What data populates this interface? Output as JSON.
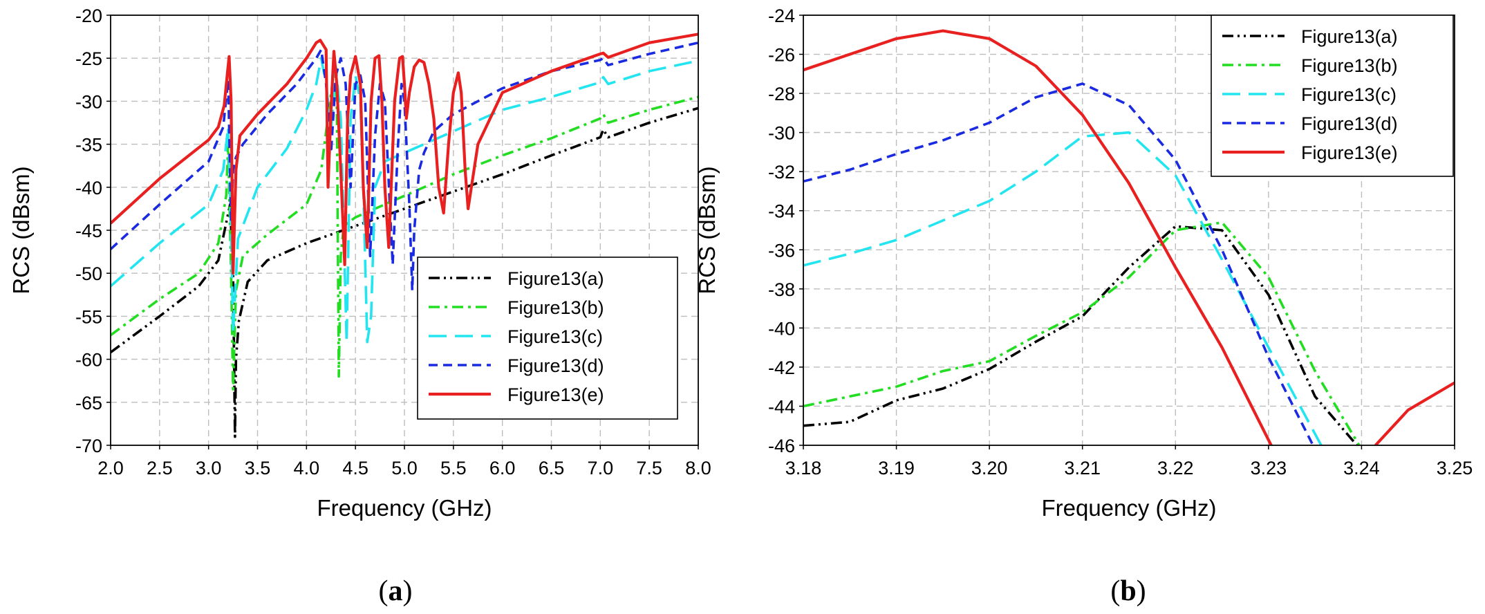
{
  "colors": {
    "a": "#000000",
    "b": "#22dd22",
    "c": "#22e5f0",
    "d": "#1a2ae0",
    "e": "#e82020"
  },
  "legend": [
    "Figure13(a)",
    "Figure13(b)",
    "Figure13(c)",
    "Figure13(d)",
    "Figure13(e)"
  ],
  "captions": {
    "a_letter": "a",
    "b_letter": "b"
  },
  "chart_data": [
    {
      "type": "line",
      "panel": "a",
      "xlabel": "Frequency (GHz)",
      "ylabel": "RCS (dBsm)",
      "xlim": [
        2.0,
        8.0
      ],
      "ylim": [
        -70,
        -20
      ],
      "xticks": [
        "2.0",
        "2.5",
        "3.0",
        "3.5",
        "4.0",
        "4.5",
        "5.0",
        "5.5",
        "6.0",
        "6.5",
        "7.0",
        "7.5",
        "8.0"
      ],
      "yticks": [
        "-20",
        "-25",
        "-30",
        "-35",
        "-40",
        "-45",
        "-50",
        "-55",
        "-60",
        "-65",
        "-70"
      ],
      "grid": true,
      "legend_position": "lower-right",
      "series": [
        {
          "name": "Figure13(a)",
          "key": "a",
          "x": [
            2.0,
            2.5,
            2.9,
            3.1,
            3.22,
            3.25,
            3.27,
            3.28,
            3.31,
            3.4,
            3.6,
            4.0,
            4.5,
            5.0,
            5.5,
            6.0,
            6.5,
            7.0,
            7.03,
            7.08,
            7.5,
            8.0
          ],
          "y": [
            -59.2,
            -55,
            -51.5,
            -48.5,
            -42,
            -50,
            -69,
            -60,
            -55.5,
            -51,
            -48.5,
            -46.5,
            -44.5,
            -42.5,
            -40.5,
            -38.5,
            -36.3,
            -34.2,
            -33.3,
            -34.2,
            -32.5,
            -30.8
          ]
        },
        {
          "name": "Figure13(b)",
          "key": "b",
          "x": [
            2.0,
            2.5,
            2.9,
            3.1,
            3.18,
            3.2,
            3.23,
            3.25,
            3.28,
            3.35,
            3.6,
            4.0,
            4.15,
            4.24,
            4.27,
            4.29,
            4.31,
            4.33,
            4.35,
            4.38,
            4.5,
            5.0,
            5.5,
            6.0,
            6.5,
            7.0,
            7.03,
            7.08,
            7.5,
            8.0
          ],
          "y": [
            -57.2,
            -53,
            -50,
            -46.5,
            -41,
            -35,
            -50,
            -63.5,
            -52,
            -48,
            -45.5,
            -42,
            -38,
            -30,
            -27.5,
            -26,
            -30,
            -62,
            -48,
            -44.5,
            -43.5,
            -41,
            -38.5,
            -36.3,
            -34.3,
            -32,
            -31.5,
            -32.5,
            -31,
            -29.5
          ]
        },
        {
          "name": "Figure13(c)",
          "key": "c",
          "x": [
            2.0,
            2.5,
            3.0,
            3.15,
            3.2,
            3.23,
            3.25,
            3.3,
            3.5,
            3.8,
            4.0,
            4.1,
            4.15,
            4.2,
            4.25,
            4.3,
            4.35,
            4.38,
            4.41,
            4.45,
            4.5,
            4.55,
            4.58,
            4.62,
            4.66,
            4.7,
            4.8,
            5.0,
            5.5,
            6.0,
            6.5,
            7.0,
            7.03,
            7.08,
            7.5,
            8.0
          ],
          "y": [
            -51.5,
            -46.5,
            -42,
            -38,
            -33,
            -45,
            -57,
            -46,
            -40,
            -35.5,
            -31,
            -28,
            -25,
            -28,
            -33.5,
            -26,
            -32,
            -45,
            -58,
            -32,
            -27,
            -30,
            -40,
            -58,
            -55,
            -40,
            -37,
            -36,
            -33.5,
            -31,
            -29.5,
            -27.8,
            -27.2,
            -28,
            -26.5,
            -25.3
          ]
        },
        {
          "name": "Figure13(d)",
          "key": "d",
          "x": [
            2.0,
            2.5,
            3.0,
            3.15,
            3.2,
            3.23,
            3.25,
            3.28,
            3.35,
            3.6,
            3.9,
            4.1,
            4.15,
            4.2,
            4.25,
            4.3,
            4.35,
            4.4,
            4.45,
            4.5,
            4.55,
            4.6,
            4.65,
            4.7,
            4.75,
            4.8,
            4.85,
            4.88,
            4.93,
            4.97,
            5.0,
            5.05,
            5.08,
            5.1,
            5.15,
            5.2,
            5.3,
            5.5,
            6.0,
            6.5,
            7.0,
            7.03,
            7.08,
            7.5,
            8.0
          ],
          "y": [
            -47.2,
            -42,
            -37,
            -33,
            -27.5,
            -44,
            -38,
            -36.5,
            -35,
            -31.5,
            -28,
            -25,
            -24,
            -28,
            -36,
            -27,
            -25,
            -28,
            -40,
            -28,
            -27,
            -30,
            -48,
            -34,
            -28,
            -30,
            -42,
            -49,
            -36,
            -28,
            -30,
            -42,
            -52,
            -45,
            -38,
            -36,
            -33.5,
            -31.5,
            -28.5,
            -26.5,
            -25.2,
            -25,
            -25.8,
            -24.5,
            -23.2
          ]
        },
        {
          "name": "Figure13(e)",
          "key": "e",
          "x": [
            2.0,
            2.5,
            3.0,
            3.1,
            3.16,
            3.19,
            3.21,
            3.23,
            3.25,
            3.28,
            3.32,
            3.5,
            3.8,
            4.0,
            4.1,
            4.14,
            4.2,
            4.22,
            4.25,
            4.28,
            4.31,
            4.35,
            4.39,
            4.42,
            4.45,
            4.5,
            4.55,
            4.58,
            4.62,
            4.66,
            4.7,
            4.74,
            4.77,
            4.8,
            4.84,
            4.9,
            4.95,
            4.98,
            5.0,
            5.02,
            5.05,
            5.1,
            5.15,
            5.2,
            5.25,
            5.3,
            5.35,
            5.4,
            5.45,
            5.5,
            5.55,
            5.58,
            5.62,
            5.65,
            5.75,
            6.0,
            6.5,
            7.0,
            7.03,
            7.08,
            7.5,
            8.0
          ],
          "y": [
            -44.2,
            -39,
            -34.5,
            -33,
            -30.5,
            -27,
            -24.8,
            -30,
            -50,
            -38,
            -34,
            -31.5,
            -28,
            -25,
            -23.2,
            -22.9,
            -24,
            -40,
            -31,
            -24.2,
            -28,
            -38,
            -49,
            -32,
            -27,
            -24.8,
            -28,
            -40,
            -47,
            -30,
            -25,
            -24.7,
            -30,
            -40,
            -47,
            -30,
            -25,
            -24.8,
            -28,
            -32,
            -29,
            -26,
            -25.2,
            -25.5,
            -28,
            -32,
            -40,
            -43,
            -35,
            -29,
            -26.7,
            -29,
            -38,
            -42.5,
            -35,
            -29,
            -26.5,
            -24.5,
            -24.4,
            -24.9,
            -23.2,
            -22.2
          ]
        }
      ]
    },
    {
      "type": "line",
      "panel": "b",
      "xlabel": "Frequency (GHz)",
      "ylabel": "RCS (dBsm)",
      "xlim": [
        3.18,
        3.25
      ],
      "ylim": [
        -46,
        -24
      ],
      "xticks": [
        "3.18",
        "3.19",
        "3.20",
        "3.21",
        "3.22",
        "3.23",
        "3.24",
        "3.25"
      ],
      "yticks": [
        "-24",
        "-26",
        "-28",
        "-30",
        "-32",
        "-34",
        "-36",
        "-38",
        "-40",
        "-42",
        "-44",
        "-46"
      ],
      "grid": true,
      "legend_position": "top-right",
      "series": [
        {
          "name": "Figure13(a)",
          "key": "a",
          "x": [
            3.18,
            3.185,
            3.19,
            3.195,
            3.2,
            3.205,
            3.21,
            3.215,
            3.22,
            3.225,
            3.23,
            3.235,
            3.2395
          ],
          "y": [
            -45,
            -44.8,
            -43.7,
            -43.1,
            -42.1,
            -40.7,
            -39.4,
            -36.9,
            -34.8,
            -35,
            -38.3,
            -43.5,
            -46
          ]
        },
        {
          "name": "Figure13(b)",
          "key": "b",
          "x": [
            3.18,
            3.185,
            3.19,
            3.195,
            3.2,
            3.205,
            3.21,
            3.215,
            3.22,
            3.225,
            3.23,
            3.235,
            3.24
          ],
          "y": [
            -44,
            -43.5,
            -43,
            -42.2,
            -41.7,
            -40.4,
            -39.2,
            -37.4,
            -35,
            -34.6,
            -37.4,
            -42.2,
            -46.2
          ]
        },
        {
          "name": "Figure13(c)",
          "key": "c",
          "x": [
            3.18,
            3.185,
            3.19,
            3.195,
            3.2,
            3.205,
            3.21,
            3.215,
            3.22,
            3.225,
            3.23,
            3.236
          ],
          "y": [
            -36.8,
            -36.2,
            -35.5,
            -34.5,
            -33.5,
            -32,
            -30.2,
            -30,
            -32.2,
            -36.5,
            -41,
            -46.3
          ]
        },
        {
          "name": "Figure13(d)",
          "key": "d",
          "x": [
            3.18,
            3.185,
            3.19,
            3.195,
            3.2,
            3.205,
            3.21,
            3.215,
            3.22,
            3.225,
            3.23,
            3.235
          ],
          "y": [
            -32.5,
            -31.9,
            -31.1,
            -30.4,
            -29.5,
            -28.2,
            -27.5,
            -28.6,
            -31.4,
            -36,
            -41.5,
            -46.2
          ]
        },
        {
          "name": "Figure13(e)",
          "key": "e",
          "x": [
            3.18,
            3.185,
            3.19,
            3.195,
            3.2,
            3.205,
            3.21,
            3.215,
            3.22,
            3.225,
            3.2305
          ],
          "y": [
            -26.8,
            -26,
            -25.2,
            -24.8,
            -25.2,
            -26.6,
            -29.1,
            -32.6,
            -36.9,
            -41,
            -46.2
          ]
        },
        {
          "name": "Figure13(e)",
          "key": "e",
          "x": [
            3.2415,
            3.245,
            3.25
          ],
          "y": [
            -46,
            -44.2,
            -42.8
          ]
        }
      ]
    }
  ]
}
